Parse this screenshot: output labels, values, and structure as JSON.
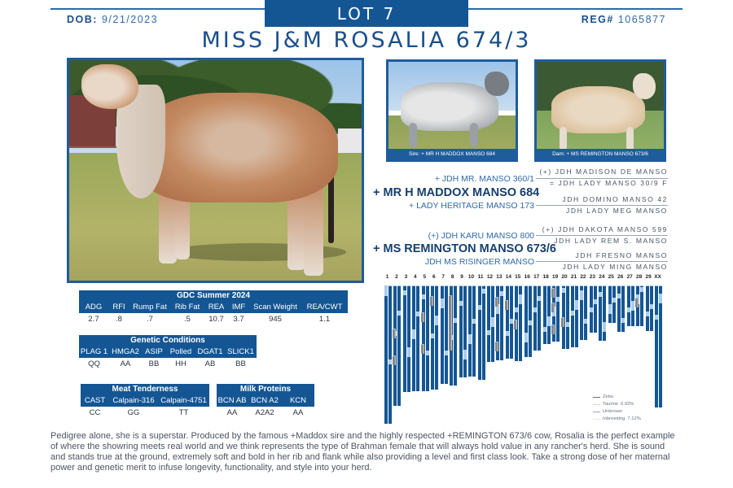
{
  "header": {
    "lot": "LOT 7",
    "dob_label": "DOB:",
    "dob_value": "9/21/2023",
    "reg_label": "REG#",
    "reg_value": "1065877",
    "title": "MISS J&M ROSALIA 674/3"
  },
  "colors": {
    "brand_blue": "#145694",
    "text_blue": "#1a4f8a",
    "light_blue": "#a9cdee"
  },
  "photos": {
    "main": {
      "alt": "Brahman heifer Miss J&M Rosalia 674/3 standing in pasture"
    },
    "sire": {
      "caption": "Sire: + MR H MADDOX MANSO 684"
    },
    "dam": {
      "caption": "Dam: + MS REMINGTON MANSO 673/6"
    }
  },
  "pedigree": {
    "sire": {
      "name": "+ MR H MADDOX MANSO 684",
      "sire": "+ JDH MR. MANSO 360/1",
      "dam": "+ LADY HERITAGE MANSO 173",
      "sire_sire": "(+) JDH MADISON DE MANSO",
      "sire_dam": "= JDH LADY MANSO 30/9 F",
      "dam_sire": "JDH DOMINO MANSO 42",
      "dam_dam": "JDH LADY MEG MANSO"
    },
    "dam": {
      "name": "+ MS REMINGTON MANSO 673/6",
      "sire": "(+) JDH KARU MANSO 800",
      "dam": "JDH MS RISINGER MANSO",
      "sire_sire": "(+) JDH DAKOTA MANSO 599",
      "sire_dam": "JDH LADY REM S. MANSO",
      "dam_sire": "JDH FRESNO MANSO",
      "dam_dam": "JDH LADY MING MANSO"
    }
  },
  "gdc": {
    "title": "GDC Summer 2024",
    "columns": [
      "ADG",
      "RFI",
      "Rump Fat",
      "Rib Fat",
      "REA",
      "IMF",
      "Scan Weight",
      "REA/CWT"
    ],
    "values": [
      "2.7",
      ".8",
      ".7",
      ".5",
      "10.7",
      "3.7",
      "945",
      "1.1"
    ]
  },
  "genetic_conditions": {
    "title": "Genetic Conditions",
    "columns": [
      "PLAG 1",
      "HMGA2",
      "ASIP",
      "Polled",
      "DGAT1",
      "SLICK1"
    ],
    "values": [
      "QQ",
      "AA",
      "BB",
      "HH",
      "AB",
      "BB"
    ]
  },
  "meat_tenderness": {
    "title": "Meat Tenderness",
    "columns": [
      "CAST",
      "Calpain-316",
      "Calpain-4751"
    ],
    "values": [
      "CC",
      "GG",
      "TT"
    ]
  },
  "milk_proteins": {
    "title": "Milk Proteins",
    "columns": [
      "BCN AB",
      "BCN A2",
      "KCN"
    ],
    "values": [
      "AA",
      "A2A2",
      "AA"
    ]
  },
  "chart_data": {
    "type": "heatmap",
    "title": "Chromosome ancestry painting",
    "categories": [
      "1",
      "2",
      "3",
      "4",
      "5",
      "6",
      "7",
      "8",
      "9",
      "10",
      "11",
      "12",
      "13",
      "14",
      "15",
      "16",
      "17",
      "18",
      "19",
      "20",
      "21",
      "22",
      "23",
      "24",
      "25",
      "26",
      "27",
      "28",
      "29",
      "XX"
    ],
    "relative_lengths": [
      170,
      148,
      131,
      130,
      130,
      128,
      121,
      123,
      113,
      112,
      116,
      94,
      92,
      90,
      93,
      88,
      80,
      72,
      69,
      78,
      76,
      67,
      58,
      68,
      46,
      57,
      50,
      50,
      56,
      150
    ],
    "legend": [
      {
        "label": "Zebu",
        "color": "#145694"
      },
      {
        "label": "Taurine",
        "value": "0.92%",
        "color": "#a9cdee"
      },
      {
        "label": "Unknown",
        "color": "#8a929b"
      },
      {
        "label": "Inbreeding",
        "value": "7.12%",
        "color": "#e5c09a"
      }
    ],
    "taurine_pct": 0.92,
    "inbreeding_pct": 7.12
  },
  "legend": {
    "zebu": "Zebu",
    "taurine": "Taurine",
    "taurine_value": "0.92%",
    "unknown": "Unknown",
    "inbreeding": "Inbreeding",
    "inbreeding_value": "7.12%"
  },
  "description": "Pedigree alone, she is a superstar. Produced by the famous +Maddox sire and the highly respected +REMINGTON 673/6 cow, Rosalia is the perfect example of where the showring meets real world and we think represents the type of Brahman female that will always hold value in any rancher's herd. She is sound and stands true at the ground, extremely soft and bold in her rib and flank while also providing a level and first class look. Take a strong dose of her maternal power and genetic merit to infuse longevity, functionality, and style into your herd."
}
